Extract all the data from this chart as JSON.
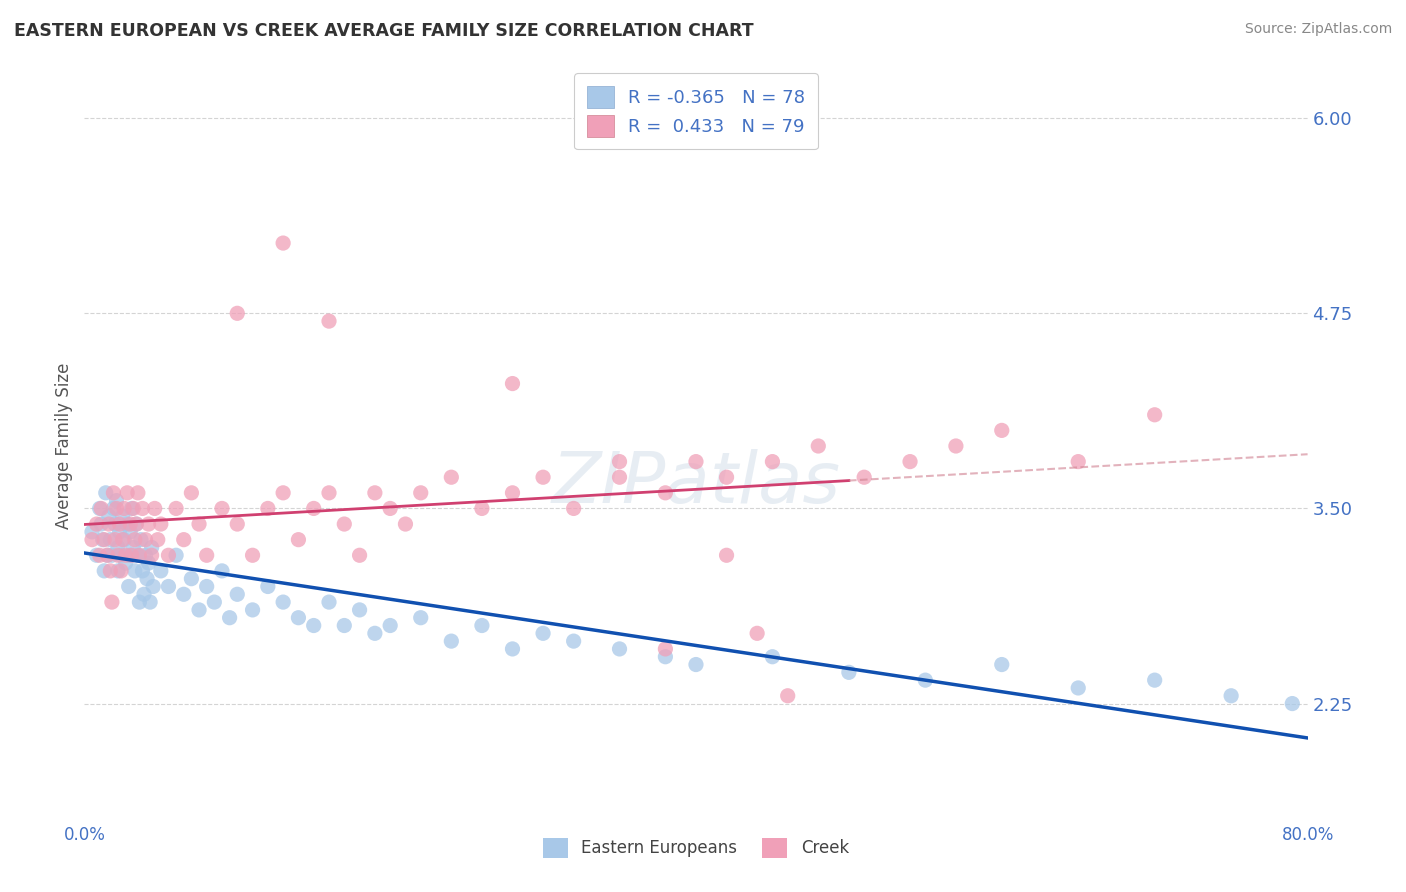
{
  "title": "EASTERN EUROPEAN VS CREEK AVERAGE FAMILY SIZE CORRELATION CHART",
  "source": "Source: ZipAtlas.com",
  "ylabel": "Average Family Size",
  "xmin": 0.0,
  "xmax": 0.8,
  "ymin": 1.5,
  "ymax": 6.3,
  "yticks": [
    2.25,
    3.5,
    4.75,
    6.0
  ],
  "xticks": [
    0.0,
    0.8
  ],
  "xtick_labels": [
    "0.0%",
    "80.0%"
  ],
  "legend_r1": "R = -0.365",
  "legend_n1": "N = 78",
  "legend_r2": "R =  0.433",
  "legend_n2": "N = 79",
  "color_eastern": "#a8c8e8",
  "color_creek": "#f0a0b8",
  "color_line_eastern": "#1050b0",
  "color_line_creek": "#d04070",
  "color_line_creek_dashed": "#d08090",
  "background_color": "#ffffff",
  "grid_color": "#d0d0d0",
  "tick_color": "#4472c4",
  "title_color": "#333333",
  "eastern_x": [
    0.005,
    0.008,
    0.01,
    0.011,
    0.012,
    0.013,
    0.014,
    0.015,
    0.016,
    0.017,
    0.018,
    0.019,
    0.02,
    0.021,
    0.022,
    0.022,
    0.023,
    0.024,
    0.025,
    0.026,
    0.027,
    0.028,
    0.029,
    0.03,
    0.03,
    0.031,
    0.032,
    0.033,
    0.034,
    0.035,
    0.036,
    0.037,
    0.038,
    0.039,
    0.04,
    0.041,
    0.042,
    0.043,
    0.044,
    0.045,
    0.05,
    0.055,
    0.06,
    0.065,
    0.07,
    0.075,
    0.08,
    0.085,
    0.09,
    0.095,
    0.1,
    0.11,
    0.12,
    0.13,
    0.14,
    0.15,
    0.16,
    0.17,
    0.18,
    0.19,
    0.2,
    0.22,
    0.24,
    0.26,
    0.28,
    0.3,
    0.32,
    0.35,
    0.38,
    0.4,
    0.45,
    0.5,
    0.55,
    0.6,
    0.65,
    0.7,
    0.75,
    0.79
  ],
  "eastern_y": [
    3.35,
    3.2,
    3.5,
    3.4,
    3.3,
    3.1,
    3.6,
    3.2,
    3.45,
    3.3,
    3.2,
    3.5,
    3.4,
    3.55,
    3.25,
    3.1,
    3.35,
    3.2,
    3.45,
    3.3,
    3.15,
    3.4,
    3.0,
    3.35,
    3.2,
    3.5,
    3.25,
    3.1,
    3.4,
    3.2,
    2.9,
    3.3,
    3.1,
    2.95,
    3.2,
    3.05,
    3.15,
    2.9,
    3.25,
    3.0,
    3.1,
    3.0,
    3.2,
    2.95,
    3.05,
    2.85,
    3.0,
    2.9,
    3.1,
    2.8,
    2.95,
    2.85,
    3.0,
    2.9,
    2.8,
    2.75,
    2.9,
    2.75,
    2.85,
    2.7,
    2.75,
    2.8,
    2.65,
    2.75,
    2.6,
    2.7,
    2.65,
    2.6,
    2.55,
    2.5,
    2.55,
    2.45,
    2.4,
    2.5,
    2.35,
    2.4,
    2.3,
    2.25
  ],
  "creek_x": [
    0.005,
    0.008,
    0.01,
    0.011,
    0.013,
    0.015,
    0.016,
    0.017,
    0.018,
    0.019,
    0.02,
    0.021,
    0.022,
    0.023,
    0.024,
    0.025,
    0.026,
    0.027,
    0.028,
    0.03,
    0.031,
    0.032,
    0.033,
    0.034,
    0.035,
    0.036,
    0.038,
    0.04,
    0.042,
    0.044,
    0.046,
    0.048,
    0.05,
    0.055,
    0.06,
    0.065,
    0.07,
    0.075,
    0.08,
    0.09,
    0.1,
    0.11,
    0.12,
    0.13,
    0.14,
    0.15,
    0.16,
    0.17,
    0.18,
    0.19,
    0.2,
    0.21,
    0.22,
    0.24,
    0.26,
    0.28,
    0.3,
    0.32,
    0.35,
    0.38,
    0.4,
    0.42,
    0.45,
    0.48,
    0.51,
    0.54,
    0.57,
    0.6,
    0.65,
    0.7,
    0.13,
    0.16,
    0.1,
    0.28,
    0.35,
    0.38,
    0.42,
    0.44,
    0.46
  ],
  "creek_y": [
    3.3,
    3.4,
    3.2,
    3.5,
    3.3,
    3.2,
    3.4,
    3.1,
    2.9,
    3.6,
    3.3,
    3.5,
    3.2,
    3.4,
    3.1,
    3.3,
    3.5,
    3.2,
    3.6,
    3.4,
    3.2,
    3.5,
    3.3,
    3.4,
    3.6,
    3.2,
    3.5,
    3.3,
    3.4,
    3.2,
    3.5,
    3.3,
    3.4,
    3.2,
    3.5,
    3.3,
    3.6,
    3.4,
    3.2,
    3.5,
    3.4,
    3.2,
    3.5,
    3.6,
    3.3,
    3.5,
    3.6,
    3.4,
    3.2,
    3.6,
    3.5,
    3.4,
    3.6,
    3.7,
    3.5,
    3.6,
    3.7,
    3.5,
    3.7,
    3.6,
    3.8,
    3.7,
    3.8,
    3.9,
    3.7,
    3.8,
    3.9,
    4.0,
    3.8,
    4.1,
    5.2,
    4.7,
    4.75,
    4.3,
    3.8,
    2.6,
    3.2,
    2.7,
    2.3
  ],
  "figsize": [
    14.06,
    8.92
  ],
  "dpi": 100
}
